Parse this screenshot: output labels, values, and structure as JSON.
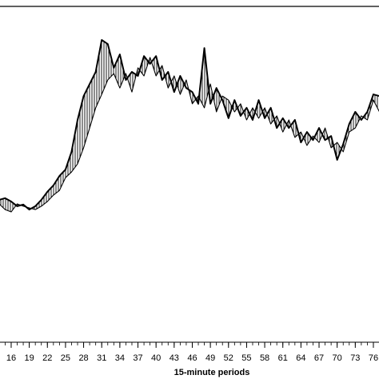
{
  "chart_data": {
    "type": "line",
    "xlabel": "15-minute periods",
    "x": [
      14,
      15,
      16,
      17,
      18,
      19,
      20,
      21,
      22,
      23,
      24,
      25,
      26,
      27,
      28,
      29,
      30,
      31,
      32,
      33,
      34,
      35,
      36,
      37,
      38,
      39,
      40,
      41,
      42,
      43,
      44,
      45,
      46,
      47,
      48,
      49,
      50,
      51,
      52,
      53,
      54,
      55,
      56,
      57,
      58,
      59,
      60,
      61,
      62,
      63,
      64,
      65,
      66,
      67,
      68,
      69,
      70,
      71,
      72,
      73,
      74,
      75,
      76,
      77
    ],
    "xlim": [
      14.15,
      76.93
    ],
    "xticks": [
      16,
      19,
      22,
      25,
      28,
      31,
      34,
      37,
      40,
      43,
      46,
      49,
      52,
      55,
      58,
      61,
      64,
      67,
      70,
      73,
      76
    ],
    "ylim": [
      0,
      100
    ],
    "series": [
      {
        "color": "#000000",
        "values": [
          42.4,
          42.9,
          41.9,
          40.5,
          41,
          39.5,
          40.5,
          42.4,
          44.8,
          46.7,
          49.5,
          51.4,
          56.7,
          66.2,
          73.3,
          76.9,
          80.5,
          90,
          88.8,
          81.7,
          85.7,
          78.1,
          80.5,
          79.3,
          85.2,
          82.9,
          85.2,
          78.1,
          80.5,
          74.5,
          79.3,
          75.7,
          74.5,
          71,
          87.6,
          71,
          75.7,
          72.1,
          66.7,
          72.1,
          67.4,
          69.8,
          66.2,
          72.1,
          66.7,
          69.8,
          63.8,
          66.7,
          63.8,
          66.2,
          59.5,
          62.6,
          60.2,
          63.8,
          60.2,
          61.4,
          54.3,
          59,
          65,
          68.6,
          66.2,
          68.6,
          73.8,
          73.3
        ]
      },
      {
        "color": "#000000",
        "values": [
          41.2,
          39.5,
          38.8,
          41.2,
          40.5,
          40,
          39.5,
          40.5,
          41.9,
          43.8,
          45.2,
          49,
          50.7,
          53.1,
          57.9,
          63.8,
          69.8,
          73.8,
          78.1,
          80,
          75.7,
          80,
          74.5,
          81.7,
          79.3,
          84.8,
          79.3,
          82.4,
          75.7,
          79.3,
          73.8,
          78.1,
          71,
          73.3,
          69.8,
          76.9,
          68.6,
          73.3,
          72.1,
          68.6,
          71,
          66.2,
          69.8,
          66.7,
          69.8,
          65,
          67.4,
          62.6,
          66.2,
          61,
          62.6,
          58.6,
          61.4,
          59.5,
          63.8,
          57.9,
          59.5,
          56.7,
          62.6,
          63.8,
          67.4,
          66.2,
          72.1,
          68.6
        ]
      }
    ]
  }
}
